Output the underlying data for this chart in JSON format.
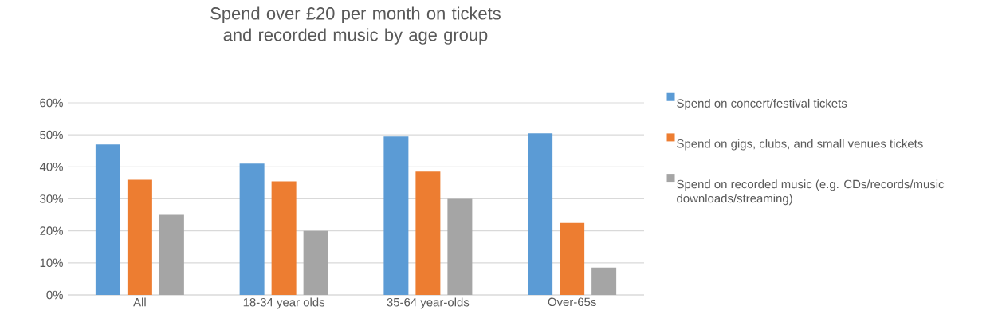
{
  "chart_data": {
    "type": "bar",
    "title": "Spend over £20 per month on tickets and recorded music by age group",
    "categories": [
      "All",
      "18-34 year olds",
      "35-64 year-olds",
      "Over-65s"
    ],
    "series": [
      {
        "name": "Spend on concert/festival tickets",
        "color": "#5b9bd5",
        "values": [
          47,
          41,
          49.5,
          50.5
        ]
      },
      {
        "name": "Spend on gigs, clubs, and small venues tickets",
        "color": "#ed7d31",
        "values": [
          36,
          35.5,
          38.5,
          22.5
        ]
      },
      {
        "name": "Spend on recorded music (e.g. CDs/records/music downloads/streaming)",
        "color": "#a5a5a5",
        "values": [
          25,
          20,
          30,
          8.5
        ]
      }
    ],
    "ylim": [
      0,
      60
    ],
    "yticks": [
      {
        "value": 0,
        "label": "0%"
      },
      {
        "value": 10,
        "label": "10%"
      },
      {
        "value": 20,
        "label": "20%"
      },
      {
        "value": 30,
        "label": "30%"
      },
      {
        "value": 40,
        "label": "40%"
      },
      {
        "value": 50,
        "label": "50%"
      },
      {
        "value": 60,
        "label": "60%"
      }
    ],
    "grid": "y",
    "legend": "right"
  }
}
